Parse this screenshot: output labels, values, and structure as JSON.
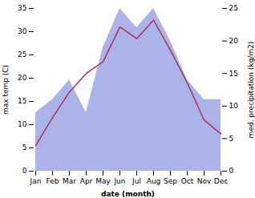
{
  "chart_data": {
    "type": "line",
    "categories": [
      "Jan",
      "Feb",
      "Mar",
      "Apr",
      "May",
      "Jun",
      "Jul",
      "Aug",
      "Sep",
      "Oct",
      "Nov",
      "Dec"
    ],
    "series": [
      {
        "type": "area",
        "axis": "y2",
        "color": "#aab4e8",
        "values": [
          9,
          11,
          14,
          9,
          19,
          25,
          22,
          25,
          20,
          14,
          11,
          11
        ]
      },
      {
        "type": "line",
        "color": "#b03060",
        "values": [
          5.5,
          11.5,
          17.0,
          21.0,
          23.5,
          31.0,
          28.5,
          32.5,
          26.0,
          19.0,
          11.0,
          8.0
        ]
      }
    ],
    "xlabel": "date (month)",
    "ylabel": "max temp (C)",
    "y2label": "med. precipitation (kg/m2)",
    "ylim": [
      0,
      35
    ],
    "yticks": [
      0,
      5,
      10,
      15,
      20,
      25,
      30,
      35
    ],
    "y2lim": [
      0,
      25
    ],
    "y2ticks": [
      0,
      5,
      10,
      15,
      20,
      25
    ],
    "grid": false
  }
}
